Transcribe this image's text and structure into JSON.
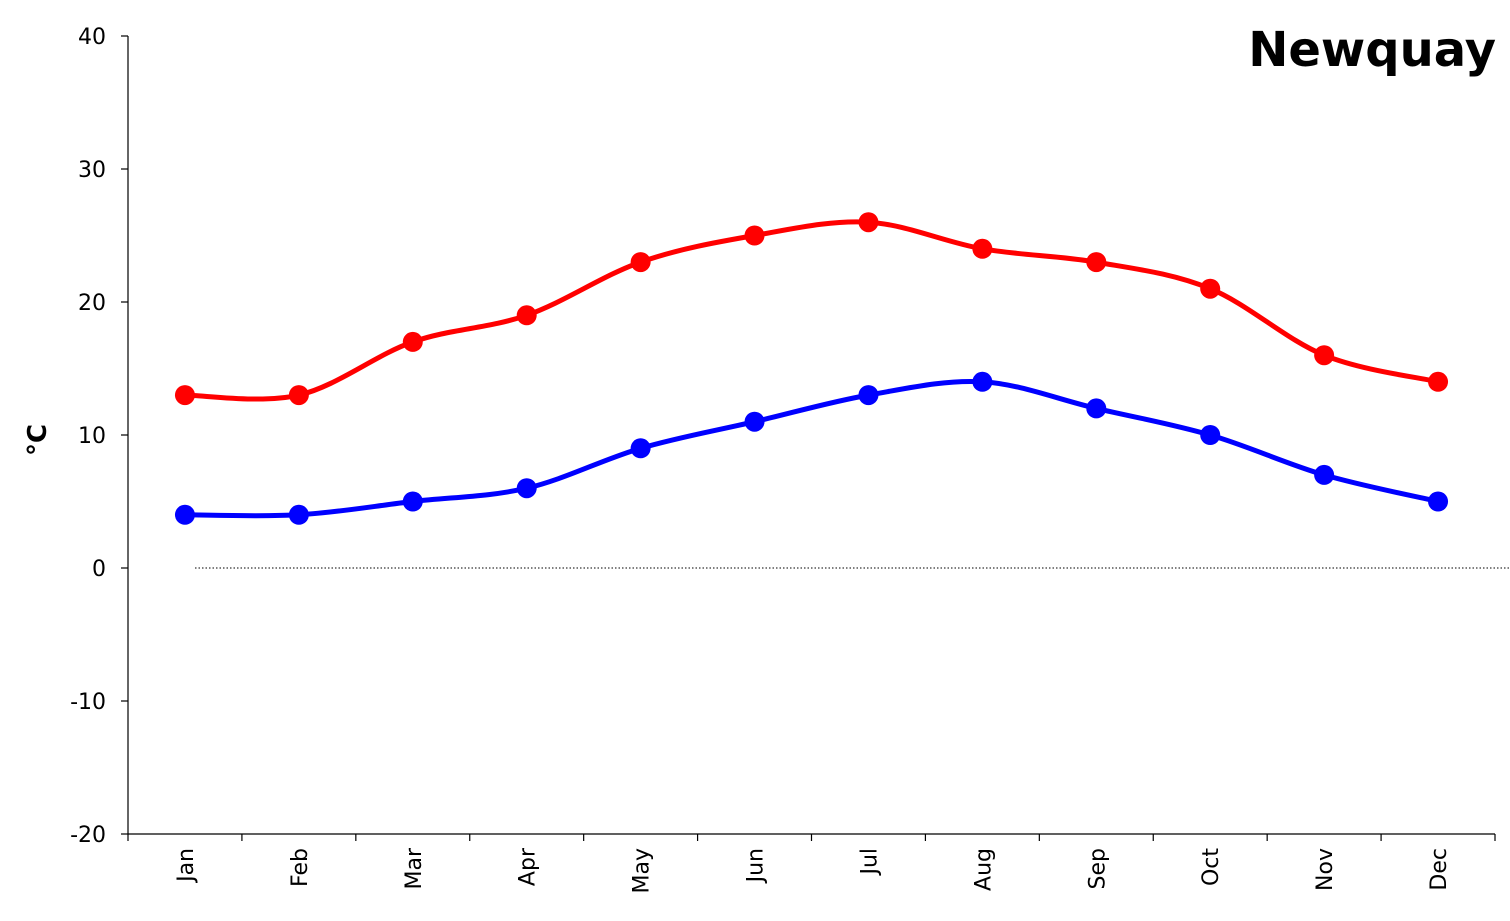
{
  "chart_data": {
    "type": "line",
    "title": "Newquay",
    "xlabel": "",
    "ylabel": "°C",
    "categories": [
      "Jan",
      "Feb",
      "Mar",
      "Apr",
      "May",
      "Jun",
      "Jul",
      "Aug",
      "Sep",
      "Oct",
      "Nov",
      "Dec"
    ],
    "ylim": [
      -20,
      40
    ],
    "yticks": [
      -20,
      -10,
      0,
      10,
      20,
      30,
      40
    ],
    "grid": false,
    "legend": "none",
    "zero_line": "dotted",
    "series": [
      {
        "values": [
          13,
          13,
          17,
          19,
          23,
          25,
          26,
          24,
          23,
          21,
          16,
          14
        ],
        "color": "#ff0000"
      },
      {
        "values": [
          4,
          4,
          5,
          6,
          9,
          11,
          13,
          14,
          12,
          10,
          7,
          5
        ],
        "color": "#0000ff"
      }
    ]
  }
}
